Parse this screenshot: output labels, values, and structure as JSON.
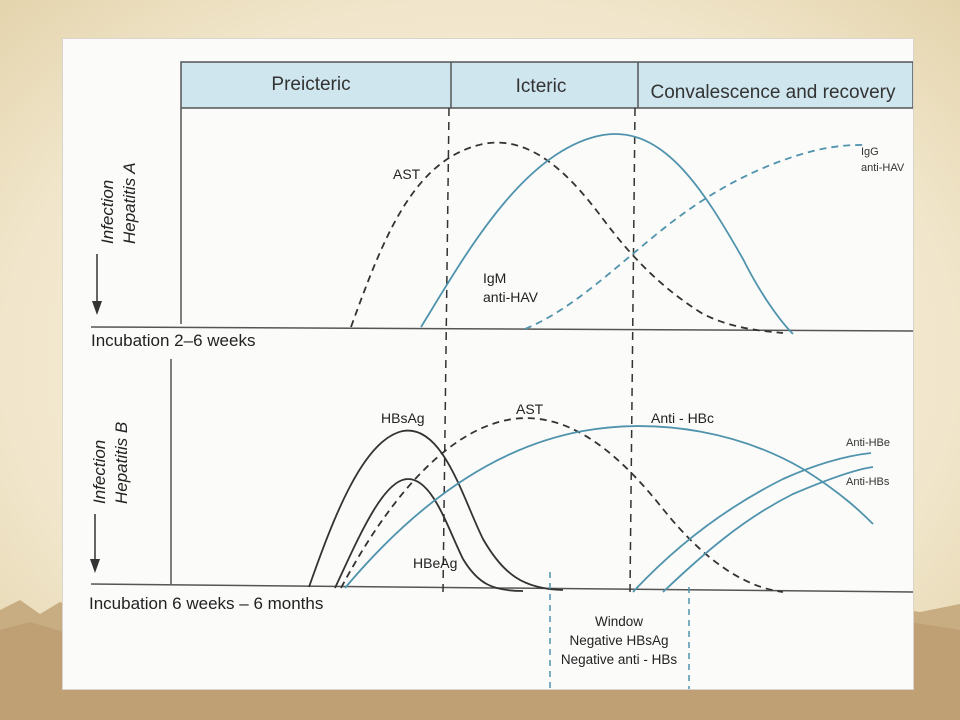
{
  "phases": {
    "preicteric": "Preicteric",
    "icteric": "Icteric",
    "convalescence": "Convalescence and recovery"
  },
  "hepatitis_a": {
    "side_label_1": "Infection",
    "side_label_2": "Hepatitis A",
    "incubation": "Incubation 2–6 weeks",
    "labels": {
      "ast": "AST",
      "igm_1": "IgM",
      "igm_2": "anti-HAV",
      "igg_1": "IgG",
      "igg_2": "anti-HAV"
    }
  },
  "hepatitis_b": {
    "side_label_1": "Infection",
    "side_label_2": "Hepatitis B",
    "incubation": "Incubation 6 weeks – 6 months",
    "labels": {
      "hbsag": "HBsAg",
      "ast": "AST",
      "anti_hbc": "Anti - HBc",
      "hbeag": "HBeAg",
      "anti_hbe": "Anti-HBe",
      "anti_hbs": "Anti-HBs"
    },
    "window": {
      "line1": "Window",
      "line2": "Negative HBsAg",
      "line3": "Negative anti - HBs"
    }
  },
  "colors": {
    "dark_curve": "#2f2f2f",
    "blue_curve": "#4f93ad",
    "header_fill": "#cfe6ee"
  }
}
